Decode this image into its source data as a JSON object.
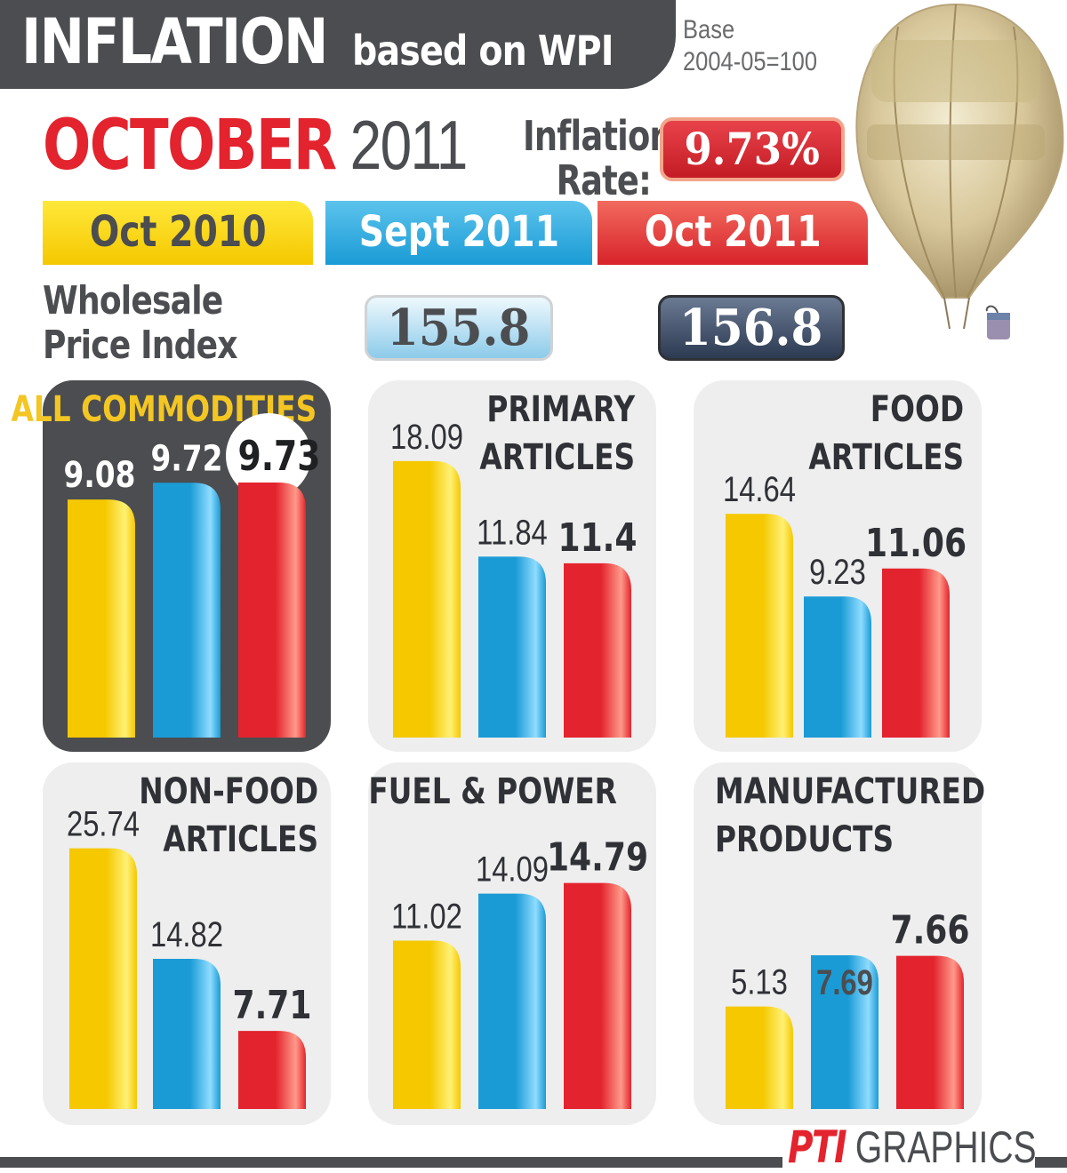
{
  "header": {
    "title_main": "INFLATION",
    "title_sub": "based on WPI",
    "base_line1": "Base",
    "base_line2": "2004-05=100"
  },
  "month": {
    "name": "OCTOBER",
    "year": "2011"
  },
  "inflation_rate": {
    "label_line1": "Inflation",
    "label_line2": "Rate:",
    "value": "9.73%"
  },
  "legend": [
    "Oct 2010",
    "Sept 2011",
    "Oct 2011"
  ],
  "wpi": {
    "label_line1": "Wholesale",
    "label_line2": "Price Index",
    "sept_2011": "155.8",
    "oct_2011": "156.8"
  },
  "colors": {
    "oct_2010": "#f5c800",
    "sept_2011": "#1a9bd6",
    "oct_2011": "#e3232d",
    "panel": "#eeeeee",
    "dark_panel": "#4b4d50"
  },
  "credit": {
    "brand": "PTI",
    "text": "GRAPHICS"
  },
  "chart_data": [
    {
      "type": "bar",
      "title": "ALL COMMODITIES",
      "categories": [
        "Oct 2010",
        "Sept 2011",
        "Oct 2011"
      ],
      "values": [
        9.08,
        9.72,
        9.73
      ],
      "labels": [
        "9.08",
        "9.72",
        "9.73"
      ]
    },
    {
      "type": "bar",
      "title": "PRIMARY ARTICLES",
      "categories": [
        "Oct 2010",
        "Sept 2011",
        "Oct 2011"
      ],
      "values": [
        18.09,
        11.84,
        11.4
      ],
      "labels": [
        "18.09",
        "11.84",
        "11.4"
      ]
    },
    {
      "type": "bar",
      "title": "FOOD ARTICLES",
      "categories": [
        "Oct 2010",
        "Sept 2011",
        "Oct 2011"
      ],
      "values": [
        14.64,
        9.23,
        11.06
      ],
      "labels": [
        "14.64",
        "9.23",
        "11.06"
      ]
    },
    {
      "type": "bar",
      "title": "NON-FOOD ARTICLES",
      "categories": [
        "Oct 2010",
        "Sept 2011",
        "Oct 2011"
      ],
      "values": [
        25.74,
        14.82,
        7.71
      ],
      "labels": [
        "25.74",
        "14.82",
        "7.71"
      ]
    },
    {
      "type": "bar",
      "title": "FUEL & POWER",
      "categories": [
        "Oct 2010",
        "Sept 2011",
        "Oct 2011"
      ],
      "values": [
        11.02,
        14.09,
        14.79
      ],
      "labels": [
        "11.02",
        "14.09",
        "14.79"
      ]
    },
    {
      "type": "bar",
      "title": "MANUFACTURED PRODUCTS",
      "categories": [
        "Oct 2010",
        "Sept 2011",
        "Oct 2011"
      ],
      "values": [
        5.13,
        7.69,
        7.66
      ],
      "labels": [
        "5.13",
        "7.69",
        "7.66"
      ]
    }
  ]
}
